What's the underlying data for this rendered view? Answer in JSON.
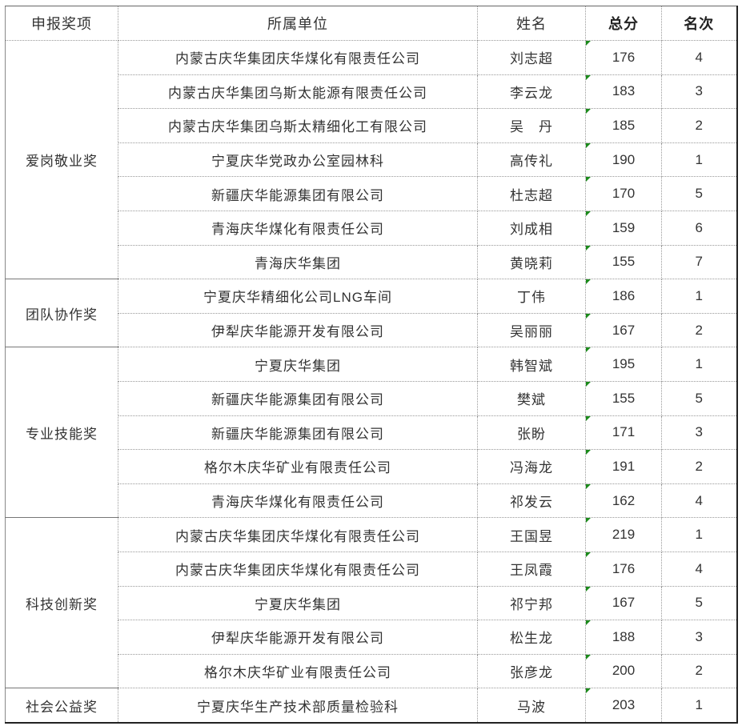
{
  "headers": [
    "申报奖项",
    "所属单位",
    "姓名",
    "总分",
    "名次"
  ],
  "groups": [
    {
      "award": "爱岗敬业奖",
      "rows": [
        [
          "内蒙古庆华集团庆华煤化有限责任公司",
          "刘志超",
          "176",
          "4"
        ],
        [
          "内蒙古庆华集团乌斯太能源有限责任公司",
          "李云龙",
          "183",
          "3"
        ],
        [
          "内蒙古庆华集团乌斯太精细化工有限公司",
          "吴　丹",
          "185",
          "2"
        ],
        [
          "宁夏庆华党政办公室园林科",
          "高传礼",
          "190",
          "1"
        ],
        [
          "新疆庆华能源集团有限公司",
          "杜志超",
          "170",
          "5"
        ],
        [
          "青海庆华煤化有限责任公司",
          "刘成相",
          "159",
          "6"
        ],
        [
          "青海庆华集团",
          "黄晓莉",
          "155",
          "7"
        ]
      ]
    },
    {
      "award": "团队协作奖",
      "rows": [
        [
          "宁夏庆华精细化公司LNG车间",
          "丁伟",
          "186",
          "1"
        ],
        [
          "伊犁庆华能源开发有限公司",
          "吴丽丽",
          "167",
          "2"
        ]
      ]
    },
    {
      "award": "专业技能奖",
      "rows": [
        [
          "宁夏庆华集团",
          "韩智斌",
          "195",
          "1"
        ],
        [
          "新疆庆华能源集团有限公司",
          "樊斌",
          "155",
          "5"
        ],
        [
          "新疆庆华能源集团有限公司",
          "张盼",
          "171",
          "3"
        ],
        [
          "格尔木庆华矿业有限责任公司",
          "冯海龙",
          "191",
          "2"
        ],
        [
          "青海庆华煤化有限责任公司",
          "祁发云",
          "162",
          "4"
        ]
      ]
    },
    {
      "award": "科技创新奖",
      "rows": [
        [
          "内蒙古庆华集团庆华煤化有限责任公司",
          "王国昱",
          "219",
          "1"
        ],
        [
          "内蒙古庆华集团庆华煤化有限责任公司",
          "王凤霞",
          "176",
          "4"
        ],
        [
          "宁夏庆华集团",
          "祁宁邦",
          "167",
          "5"
        ],
        [
          "伊犁庆华能源开发有限公司",
          "松生龙",
          "188",
          "3"
        ],
        [
          "格尔木庆华矿业有限责任公司",
          "张彦龙",
          "200",
          "2"
        ]
      ]
    },
    {
      "award": "社会公益奖",
      "rows": [
        [
          "宁夏庆华生产技术部质量检验科",
          "马波",
          "203",
          "1"
        ]
      ]
    }
  ],
  "colors": {
    "comment_marker": "#1a8a1a"
  }
}
